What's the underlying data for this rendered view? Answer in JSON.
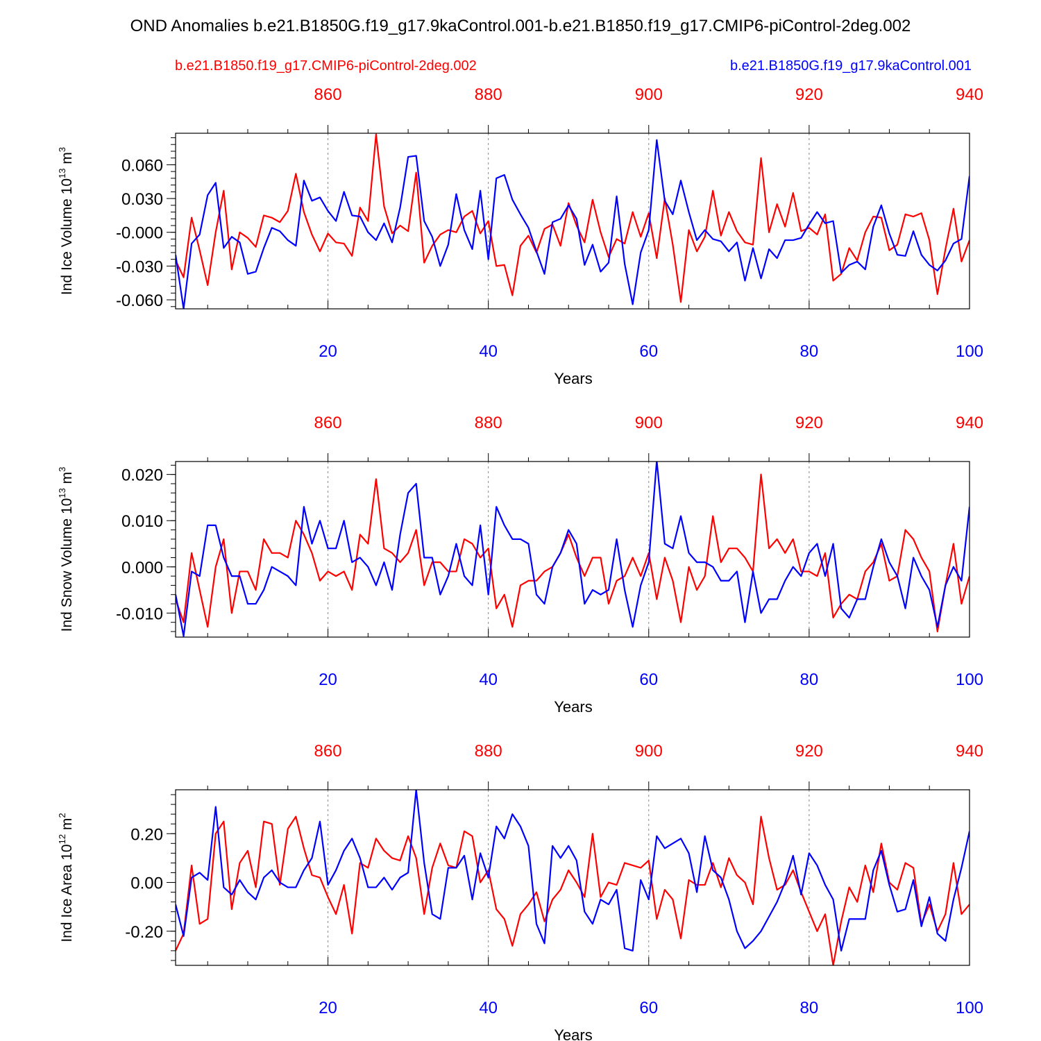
{
  "title": "OND Anomalies b.e21.B1850G.f19_g17.9kaControl.001-b.e21.B1850.f19_g17.CMIP6-piControl-2deg.002",
  "legend": {
    "red": "b.e21.B1850.f19_g17.CMIP6-piControl-2deg.002",
    "blue": "b.e21.B1850G.f19_g17.9kaControl.001"
  },
  "colors": {
    "red": "#ff0000",
    "blue": "#0000ff"
  },
  "chart_data": [
    {
      "type": "line",
      "title": "",
      "ylabel": "Ind Ice Volume 10",
      "ylabel_exp": "13",
      "ylabel_unit": " m",
      "ylabel_unit_exp": "3",
      "xlabel": "Years",
      "xlim": [
        1,
        100
      ],
      "ylim": [
        -0.068,
        0.088
      ],
      "yticks": [
        0.06,
        0.03,
        0.0,
        -0.03,
        -0.06
      ],
      "ytick_labels": [
        "0.060",
        "0.030",
        "-0.000",
        "-0.030",
        "-0.060"
      ],
      "xticks_bottom": [
        20,
        40,
        60,
        80,
        100
      ],
      "xtick_labels_top": [
        "860",
        "880",
        "900",
        "920",
        "940"
      ],
      "series": [
        {
          "name": "b.e21.B1850G.f19_g17.9kaControl.001",
          "color": "blue",
          "values": [
            -0.02,
            -0.068,
            -0.01,
            -0.002,
            0.033,
            0.044,
            -0.014,
            -0.004,
            -0.009,
            -0.037,
            -0.035,
            -0.014,
            0.004,
            0.001,
            -0.007,
            -0.012,
            0.046,
            0.028,
            0.031,
            0.019,
            0.01,
            0.036,
            0.015,
            0.014,
            0.0,
            -0.007,
            0.008,
            -0.009,
            0.022,
            0.067,
            0.068,
            0.01,
            -0.004,
            -0.03,
            -0.011,
            0.034,
            0.002,
            -0.015,
            0.037,
            -0.024,
            0.048,
            0.051,
            0.029,
            0.016,
            0.004,
            -0.017,
            -0.037,
            0.009,
            0.012,
            0.024,
            0.012,
            -0.029,
            -0.011,
            -0.035,
            -0.027,
            0.032,
            -0.028,
            -0.064,
            -0.018,
            0.002,
            0.082,
            0.028,
            0.016,
            0.046,
            0.018,
            -0.007,
            0.002,
            -0.006,
            -0.008,
            -0.017,
            -0.009,
            -0.043,
            -0.014,
            -0.041,
            -0.015,
            -0.023,
            -0.007,
            -0.007,
            -0.005,
            0.007,
            0.018,
            0.008,
            0.01,
            -0.036,
            -0.029,
            -0.026,
            -0.033,
            0.005,
            0.024,
            -0.001,
            -0.02,
            -0.021,
            0.001,
            -0.02,
            -0.029,
            -0.034,
            -0.025,
            -0.01,
            -0.006,
            0.05
          ]
        },
        {
          "name": "b.e21.B1850.f19_g17.CMIP6-piControl-2deg.002",
          "color": "red",
          "values": [
            -0.025,
            -0.04,
            0.013,
            -0.016,
            -0.047,
            0.0,
            0.037,
            -0.033,
            0.0,
            -0.005,
            -0.013,
            0.015,
            0.013,
            0.009,
            0.019,
            0.052,
            0.018,
            -0.002,
            -0.017,
            -0.001,
            -0.009,
            -0.01,
            -0.021,
            0.022,
            0.01,
            0.087,
            0.023,
            -0.001,
            0.006,
            0.001,
            0.053,
            -0.027,
            -0.012,
            -0.002,
            0.002,
            0.0,
            0.014,
            0.019,
            -0.001,
            0.01,
            -0.03,
            -0.029,
            -0.056,
            -0.012,
            -0.003,
            -0.018,
            0.003,
            0.007,
            -0.012,
            0.026,
            0.006,
            -0.009,
            0.029,
            0.0,
            -0.022,
            -0.006,
            -0.01,
            0.018,
            -0.004,
            0.017,
            -0.023,
            0.03,
            -0.011,
            -0.062,
            0.002,
            -0.017,
            -0.004,
            0.037,
            -0.003,
            0.018,
            0.001,
            -0.009,
            -0.011,
            0.066,
            0.0,
            0.025,
            0.005,
            0.035,
            0.001,
            0.004,
            -0.002,
            0.016,
            -0.043,
            -0.037,
            -0.014,
            -0.025,
            0.0,
            0.014,
            0.013,
            -0.016,
            -0.011,
            0.016,
            0.014,
            0.017,
            -0.007,
            -0.055,
            -0.015,
            0.021,
            -0.026,
            -0.007
          ]
        }
      ]
    },
    {
      "type": "line",
      "title": "",
      "ylabel": "Ind Snow Volume 10",
      "ylabel_exp": "13",
      "ylabel_unit": " m",
      "ylabel_unit_exp": "3",
      "xlabel": "Years",
      "xlim": [
        1,
        100
      ],
      "ylim": [
        -0.0152,
        0.0228
      ],
      "yticks": [
        0.02,
        0.01,
        0.0,
        -0.01
      ],
      "ytick_labels": [
        "0.020",
        "0.010",
        "0.000",
        "-0.010"
      ],
      "xticks_bottom": [
        20,
        40,
        60,
        80,
        100
      ],
      "xtick_labels_top": [
        "860",
        "880",
        "900",
        "920",
        "940"
      ],
      "series": [
        {
          "name": "b.e21.B1850G.f19_g17.9kaControl.001",
          "color": "blue",
          "values": [
            -0.006,
            -0.015,
            -0.001,
            -0.002,
            0.009,
            0.009,
            0.002,
            -0.002,
            -0.002,
            -0.008,
            -0.008,
            -0.005,
            0.0,
            -0.001,
            -0.002,
            -0.004,
            0.013,
            0.005,
            0.01,
            0.004,
            0.004,
            0.01,
            0.001,
            0.002,
            0.0,
            -0.004,
            0.001,
            -0.005,
            0.007,
            0.016,
            0.018,
            0.002,
            0.002,
            -0.006,
            -0.002,
            0.005,
            -0.002,
            -0.004,
            0.009,
            -0.006,
            0.013,
            0.009,
            0.006,
            0.006,
            0.005,
            -0.006,
            -0.008,
            0.0,
            0.003,
            0.008,
            0.005,
            -0.008,
            -0.005,
            -0.006,
            -0.005,
            0.006,
            -0.005,
            -0.013,
            -0.004,
            0.001,
            0.023,
            0.005,
            0.004,
            0.011,
            0.003,
            0.001,
            0.001,
            0.0,
            -0.003,
            -0.003,
            -0.001,
            -0.012,
            -0.001,
            -0.01,
            -0.007,
            -0.007,
            -0.003,
            0.0,
            -0.002,
            0.003,
            0.005,
            -0.002,
            0.005,
            -0.009,
            -0.011,
            -0.007,
            -0.007,
            0.0,
            0.006,
            0.001,
            -0.002,
            -0.009,
            0.002,
            -0.002,
            -0.005,
            -0.013,
            -0.004,
            0.0,
            -0.003,
            0.013
          ]
        },
        {
          "name": "b.e21.B1850.f19_g17.CMIP6-piControl-2deg.002",
          "color": "red",
          "values": [
            -0.007,
            -0.012,
            0.003,
            -0.005,
            -0.013,
            0.0,
            0.006,
            -0.01,
            -0.001,
            -0.001,
            -0.005,
            0.006,
            0.003,
            0.003,
            0.002,
            0.01,
            0.007,
            0.003,
            -0.003,
            -0.001,
            -0.002,
            -0.001,
            -0.005,
            0.007,
            0.005,
            0.019,
            0.004,
            0.003,
            0.001,
            0.003,
            0.008,
            -0.004,
            0.001,
            0.001,
            -0.001,
            -0.001,
            0.006,
            0.005,
            0.002,
            0.004,
            -0.009,
            -0.006,
            -0.013,
            -0.004,
            -0.003,
            -0.003,
            -0.001,
            0.0,
            0.003,
            0.007,
            0.002,
            -0.002,
            0.002,
            0.002,
            -0.008,
            -0.003,
            -0.002,
            0.002,
            -0.002,
            0.003,
            -0.007,
            0.002,
            -0.003,
            -0.012,
            0.0,
            -0.005,
            -0.002,
            0.011,
            0.001,
            0.004,
            0.004,
            0.002,
            -0.001,
            0.02,
            0.004,
            0.006,
            0.003,
            0.006,
            -0.001,
            -0.001,
            -0.002,
            0.003,
            -0.011,
            -0.008,
            -0.006,
            -0.007,
            -0.001,
            0.001,
            0.005,
            -0.003,
            -0.002,
            0.008,
            0.006,
            0.002,
            -0.001,
            -0.014,
            -0.004,
            0.005,
            -0.008,
            -0.002
          ]
        }
      ]
    },
    {
      "type": "line",
      "title": "",
      "ylabel": "Ind Ice Area 10",
      "ylabel_exp": "12",
      "ylabel_unit": " m",
      "ylabel_unit_exp": "2",
      "xlabel": "Years",
      "xlim": [
        1,
        100
      ],
      "ylim": [
        -0.34,
        0.38
      ],
      "yticks": [
        0.2,
        0.0,
        -0.2
      ],
      "ytick_labels": [
        "0.20",
        "0.00",
        "-0.20"
      ],
      "xticks_bottom": [
        20,
        40,
        60,
        80,
        100
      ],
      "xtick_labels_top": [
        "860",
        "880",
        "900",
        "920",
        "940"
      ],
      "series": [
        {
          "name": "b.e21.B1850G.f19_g17.9kaControl.001",
          "color": "blue",
          "values": [
            -0.09,
            -0.22,
            0.02,
            0.04,
            0.01,
            0.31,
            -0.02,
            -0.05,
            0.01,
            -0.04,
            -0.07,
            0.02,
            0.05,
            0.0,
            -0.02,
            -0.02,
            0.05,
            0.1,
            0.25,
            -0.01,
            0.05,
            0.13,
            0.18,
            0.1,
            -0.02,
            -0.02,
            0.02,
            -0.03,
            0.02,
            0.04,
            0.38,
            0.08,
            -0.13,
            -0.15,
            0.06,
            0.06,
            0.11,
            -0.07,
            0.12,
            0.02,
            0.23,
            0.18,
            0.28,
            0.23,
            0.15,
            -0.17,
            -0.25,
            0.15,
            0.1,
            0.15,
            0.09,
            -0.12,
            -0.17,
            -0.07,
            -0.09,
            -0.03,
            -0.27,
            -0.28,
            0.01,
            -0.07,
            0.19,
            0.14,
            0.16,
            0.18,
            0.12,
            -0.04,
            0.19,
            0.05,
            0.02,
            -0.07,
            -0.2,
            -0.27,
            -0.24,
            -0.2,
            -0.14,
            -0.08,
            0.0,
            0.11,
            -0.05,
            0.12,
            0.07,
            -0.01,
            -0.07,
            -0.28,
            -0.15,
            -0.15,
            -0.15,
            0.05,
            0.13,
            -0.01,
            -0.12,
            -0.11,
            0.01,
            -0.18,
            -0.06,
            -0.21,
            -0.24,
            -0.07,
            0.06,
            0.21
          ]
        },
        {
          "name": "b.e21.B1850.f19_g17.CMIP6-piControl-2deg.002",
          "color": "red",
          "values": [
            -0.28,
            -0.21,
            0.07,
            -0.17,
            -0.15,
            0.2,
            0.25,
            -0.11,
            0.08,
            0.13,
            -0.02,
            0.25,
            0.24,
            -0.01,
            0.22,
            0.27,
            0.14,
            0.03,
            0.02,
            -0.06,
            -0.13,
            -0.01,
            -0.21,
            0.08,
            0.06,
            0.18,
            0.13,
            0.1,
            0.09,
            0.19,
            0.1,
            -0.13,
            0.06,
            0.16,
            0.07,
            0.06,
            0.21,
            0.19,
            0.0,
            0.05,
            -0.11,
            -0.15,
            -0.26,
            -0.13,
            -0.09,
            -0.04,
            -0.16,
            -0.07,
            -0.03,
            0.05,
            0.0,
            -0.06,
            0.2,
            -0.06,
            0.0,
            -0.01,
            0.08,
            0.07,
            0.06,
            0.09,
            -0.15,
            -0.03,
            -0.07,
            -0.23,
            0.01,
            -0.01,
            -0.01,
            0.08,
            -0.02,
            0.1,
            0.03,
            0.0,
            -0.09,
            0.27,
            0.1,
            -0.03,
            -0.01,
            0.05,
            -0.04,
            -0.12,
            -0.2,
            -0.13,
            -0.34,
            -0.16,
            -0.02,
            -0.08,
            0.07,
            -0.04,
            0.16,
            0.0,
            -0.03,
            0.08,
            0.06,
            -0.17,
            -0.09,
            -0.2,
            -0.13,
            0.08,
            -0.13,
            -0.09
          ]
        }
      ]
    }
  ]
}
